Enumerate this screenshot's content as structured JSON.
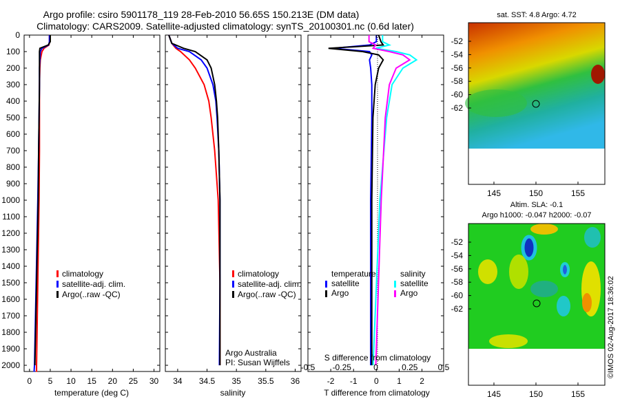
{
  "title_line1": "Argo profile: csiro 5901178_119 28-Feb-2010 56.65S 150.213E (DM data)",
  "title_line2": "Climatology: CARS2009. Satellite-adjusted climatology: synTS_20100301.nc (0.6d later)",
  "colors": {
    "clim": "#ff0000",
    "sat": "#0000ff",
    "argo": "#000000",
    "sal_sat": "#00ffff",
    "sal_argo": "#ff00ff"
  },
  "depth_ticks": [
    "0",
    "100",
    "200",
    "300",
    "400",
    "500",
    "600",
    "700",
    "800",
    "900",
    "1000",
    "1100",
    "1200",
    "1300",
    "1400",
    "1500",
    "1600",
    "1700",
    "1800",
    "1900",
    "2000"
  ],
  "chart_data": [
    {
      "type": "line",
      "xlabel": "temperature (deg C)",
      "ylabel": "depth",
      "xlim": [
        -1.3,
        31.4
      ],
      "ylim": [
        2035,
        0
      ],
      "xticks": [
        "0",
        "5",
        "10",
        "15",
        "20",
        "25",
        "30"
      ],
      "legend": [
        "climatology",
        "satellite-adj. clim.",
        "Argo(..raw -QC)"
      ],
      "series": [
        {
          "name": "climatology",
          "color": "#ff0000",
          "depth": [
            0,
            40,
            60,
            80,
            100,
            150,
            200,
            300,
            500,
            700,
            1000,
            1500,
            2000,
            2040
          ],
          "values": [
            4.8,
            4.8,
            4.7,
            3.5,
            3.0,
            2.6,
            2.5,
            2.4,
            2.4,
            2.4,
            2.3,
            2.0,
            1.7,
            1.7
          ]
        },
        {
          "name": "satellite-adj. clim.",
          "color": "#0000ff",
          "depth": [
            0,
            40,
            60,
            80,
            100,
            150,
            200,
            300,
            500,
            700,
            1000,
            1500,
            2000,
            2040
          ],
          "values": [
            4.8,
            4.8,
            4.6,
            3.0,
            2.6,
            2.5,
            2.4,
            2.4,
            2.3,
            2.2,
            2.0,
            1.6,
            1.2,
            1.1
          ]
        },
        {
          "name": "Argo(..raw -QC)",
          "color": "#000000",
          "depth": [
            0,
            40,
            60,
            80,
            100,
            150,
            200,
            300,
            500,
            700,
            1000,
            1500,
            2000
          ],
          "values": [
            5.0,
            5.0,
            4.5,
            2.5,
            2.4,
            2.4,
            2.4,
            2.4,
            2.3,
            2.2,
            2.1,
            1.7,
            1.3
          ]
        }
      ]
    },
    {
      "type": "line",
      "xlabel": "salinity",
      "ylabel": "depth",
      "xlim": [
        33.79,
        36.1
      ],
      "ylim": [
        2035,
        0
      ],
      "xticks": [
        "34",
        "34.5",
        "35",
        "35.5",
        "36"
      ],
      "legend": [
        "climatology",
        "satellite-adj. clim.",
        "Argo(..raw -QC)"
      ],
      "annotation": [
        "Argo Australia",
        "PI: Susan Wijffels"
      ],
      "series": [
        {
          "name": "climatology",
          "color": "#ff0000",
          "depth": [
            0,
            50,
            80,
            100,
            150,
            200,
            300,
            400,
            500,
            700,
            1000,
            1500,
            2000
          ],
          "values": [
            33.85,
            33.9,
            33.97,
            34.05,
            34.2,
            34.3,
            34.45,
            34.53,
            34.57,
            34.63,
            34.69,
            34.72,
            34.72
          ]
        },
        {
          "name": "satellite-adj. clim.",
          "color": "#0000ff",
          "depth": [
            0,
            50,
            80,
            100,
            150,
            200,
            300,
            400,
            500,
            700,
            1000,
            1500,
            2000
          ],
          "values": [
            33.85,
            33.9,
            34.0,
            34.2,
            34.4,
            34.5,
            34.6,
            34.65,
            34.67,
            34.7,
            34.72,
            34.72,
            34.71
          ]
        },
        {
          "name": "Argo(..raw -QC)",
          "color": "#000000",
          "depth": [
            0,
            50,
            80,
            100,
            150,
            200,
            300,
            400,
            500,
            700,
            1000,
            1500,
            2000
          ],
          "values": [
            33.85,
            33.9,
            34.1,
            34.3,
            34.5,
            34.57,
            34.63,
            34.66,
            34.68,
            34.7,
            34.72,
            34.72,
            34.72
          ]
        }
      ]
    },
    {
      "type": "line",
      "xlabel": "T difference from climatology",
      "xlabel2": "S difference from climatology",
      "xlim": [
        -3.0,
        2.95
      ],
      "xlim2": [
        -0.5,
        0.5
      ],
      "ylim": [
        2035,
        0
      ],
      "xticks": [
        "-2",
        "-1",
        "0",
        "1",
        "2"
      ],
      "xticks2": [
        "-0.5",
        "-0.25",
        "0",
        "0.25",
        "0.5"
      ],
      "legend_titles": [
        "temperature",
        "salinity"
      ],
      "legend": [
        "satellite",
        "Argo",
        "satellite",
        "Argo"
      ],
      "series": [
        {
          "name": "temperature satellite",
          "axis": "T",
          "color": "#0000ff",
          "depth": [
            0,
            40,
            60,
            80,
            100,
            120,
            150,
            200,
            300,
            500,
            1000,
            2000
          ],
          "values": [
            0,
            0,
            -0.3,
            -1.9,
            -0.3,
            -0.2,
            -0.3,
            -0.25,
            -0.2,
            -0.2,
            -0.25,
            -0.25
          ]
        },
        {
          "name": "temperature Argo",
          "axis": "T",
          "color": "#000000",
          "depth": [
            0,
            40,
            60,
            80,
            100,
            120,
            150,
            200,
            300,
            500,
            1000,
            2000
          ],
          "values": [
            0.1,
            0.2,
            0.3,
            -2.1,
            -0.6,
            0.1,
            0.3,
            0.1,
            -0.05,
            -0.15,
            -0.2,
            -0.2
          ]
        },
        {
          "name": "salinity satellite",
          "axis": "S",
          "color": "#00ffff",
          "depth": [
            0,
            40,
            60,
            80,
            100,
            120,
            150,
            200,
            300,
            500,
            1000,
            2000
          ],
          "values": [
            0.05,
            0.05,
            0.1,
            0.0,
            0.15,
            0.25,
            0.3,
            0.2,
            0.12,
            0.08,
            0.03,
            -0.02
          ]
        },
        {
          "name": "salinity Argo",
          "axis": "S",
          "color": "#ff00ff",
          "depth": [
            0,
            40,
            60,
            80,
            100,
            120,
            150,
            200,
            300,
            500,
            1000,
            2000
          ],
          "values": [
            -0.05,
            -0.05,
            0.0,
            -0.02,
            0.1,
            0.2,
            0.25,
            0.15,
            0.1,
            0.07,
            0.04,
            0.0
          ]
        }
      ]
    },
    {
      "type": "heatmap",
      "title": "sat. SST: 4.8 Argo: 4.72",
      "xticks": [
        "145",
        "150",
        "155"
      ],
      "yticks": [
        "-52",
        "-54",
        "-56",
        "-58",
        "-60",
        "-62"
      ],
      "marker": {
        "lon": 150.213,
        "lat": -56.65
      }
    },
    {
      "type": "heatmap",
      "title": "Altim. SLA: -0.1",
      "title2": "Argo h1000: -0.047 h2000: -0.07",
      "xticks": [
        "145",
        "150",
        "155"
      ],
      "yticks": [
        "-52",
        "-54",
        "-56",
        "-58",
        "-60",
        "-62"
      ],
      "marker": {
        "lon": 150.213,
        "lat": -56.65
      }
    }
  ],
  "credit": "©IMOS 02-Aug-2017 18:36:02"
}
